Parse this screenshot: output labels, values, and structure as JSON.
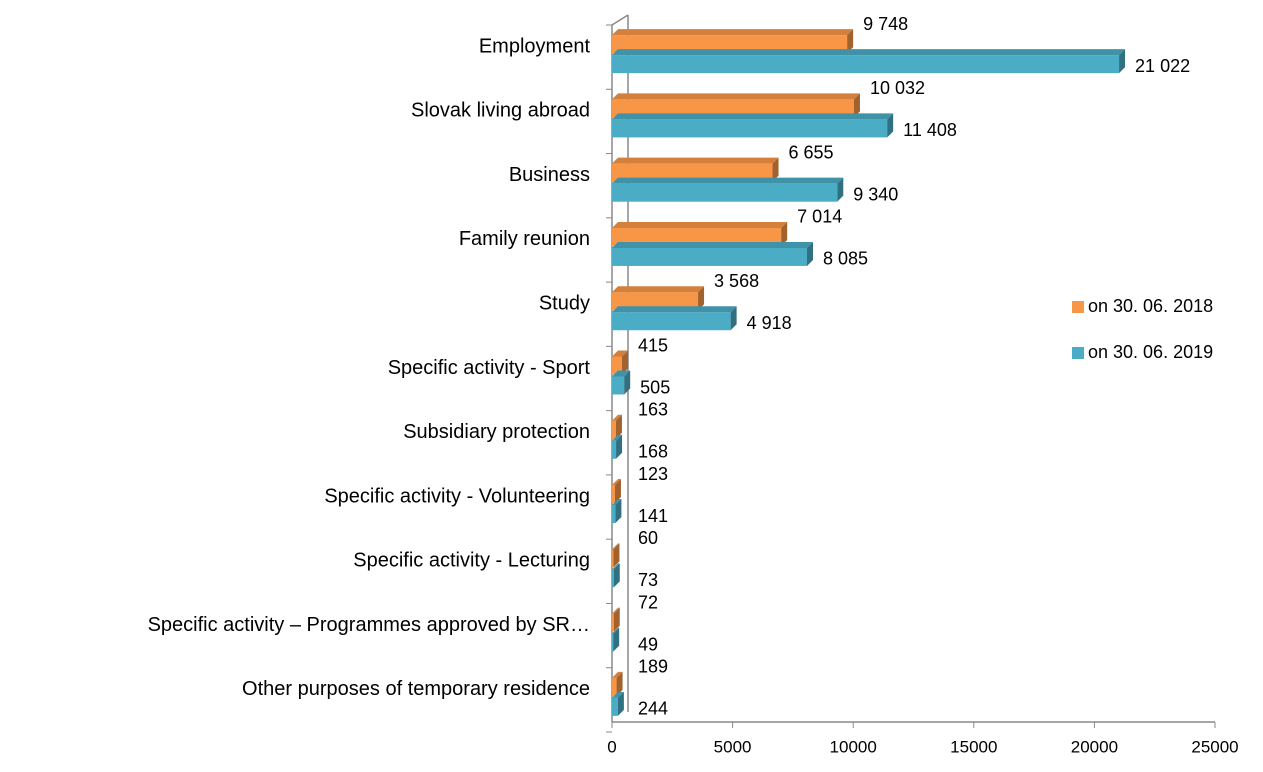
{
  "chart_data": {
    "type": "bar",
    "orientation": "horizontal",
    "categories": [
      "Employment",
      "Slovak living abroad",
      "Business",
      "Family reunion",
      "Study",
      "Specific activity - Sport",
      "Subsidiary protection",
      "Specific activity - Volunteering",
      "Specific activity - Lecturing",
      "Specific activity – Programmes approved by SR…",
      "Other purposes of temporary residence"
    ],
    "series": [
      {
        "name": "on 30. 06. 2018",
        "color": "#f79646",
        "values": [
          9748,
          10032,
          6655,
          7014,
          3568,
          415,
          163,
          123,
          60,
          72,
          189
        ],
        "value_labels": [
          "9 748",
          "10 032",
          "6 655",
          "7 014",
          "3 568",
          "415",
          "163",
          "123",
          "60",
          "72",
          "189"
        ]
      },
      {
        "name": "on 30. 06. 2019",
        "color": "#4bacc6",
        "values": [
          21022,
          11408,
          9340,
          8085,
          4918,
          505,
          168,
          141,
          73,
          49,
          244
        ],
        "value_labels": [
          "21 022",
          "11 408",
          "9 340",
          "8 085",
          "4 918",
          "505",
          "168",
          "141",
          "73",
          "49",
          "244"
        ]
      }
    ],
    "xlim": [
      0,
      25000
    ],
    "xticks": [
      0,
      5000,
      10000,
      15000,
      20000,
      25000
    ],
    "legend": "right"
  }
}
